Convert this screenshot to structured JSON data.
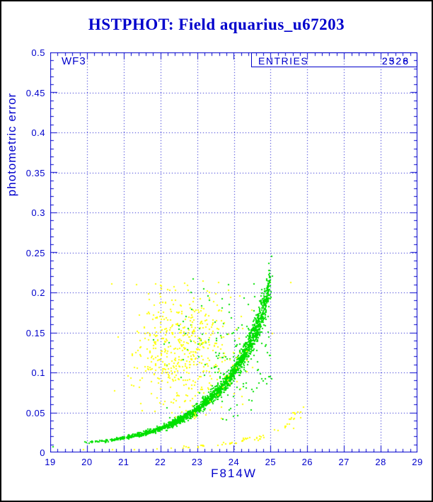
{
  "title": "HSTPHOT: Field aquarius_u67203",
  "chip_label": "WF3",
  "entries": {
    "label": "ENTRIES",
    "values": [
      "2528",
      "2326"
    ]
  },
  "colors": {
    "axis_blue": "#0000cc",
    "title_blue": "#0000cc",
    "green_points": "#00e000",
    "yellow_points": "#ffff00",
    "background": "#ffffff"
  },
  "chart_data": {
    "type": "scatter",
    "title": "HSTPHOT: Field aquarius_u67203",
    "xlabel": "F814W",
    "ylabel": "photometric error",
    "xlim": [
      19,
      29
    ],
    "ylim": [
      0,
      0.5
    ],
    "x_major_tick": 1,
    "x_minor_tick": 0.2,
    "y_major_tick": 0.05,
    "y_minor_tick": 0.01,
    "grid": "dotted blue lines at major ticks, ticks inward on all four sides",
    "x_ticks": [
      {
        "v": 19,
        "label": "19"
      },
      {
        "v": 20,
        "label": "20"
      },
      {
        "v": 21,
        "label": "21"
      },
      {
        "v": 22,
        "label": "22"
      },
      {
        "v": 23,
        "label": "23"
      },
      {
        "v": 24,
        "label": "24"
      },
      {
        "v": 25,
        "label": "25"
      },
      {
        "v": 26,
        "label": "26"
      },
      {
        "v": 27,
        "label": "27"
      },
      {
        "v": 28,
        "label": "28"
      },
      {
        "v": 29,
        "label": "29"
      }
    ],
    "y_ticks": [
      {
        "v": 0,
        "label": "0"
      },
      {
        "v": 0.05,
        "label": "0.05"
      },
      {
        "v": 0.1,
        "label": "0.1"
      },
      {
        "v": 0.15,
        "label": "0.15"
      },
      {
        "v": 0.2,
        "label": "0.2"
      },
      {
        "v": 0.25,
        "label": "0.25"
      },
      {
        "v": 0.3,
        "label": "0.3"
      },
      {
        "v": 0.35,
        "label": "0.35"
      },
      {
        "v": 0.4,
        "label": "0.4"
      },
      {
        "v": 0.45,
        "label": "0.45"
      },
      {
        "v": 0.5,
        "label": "0.5"
      }
    ],
    "marker_px": 2,
    "seed": 20251234,
    "series": [
      {
        "name": "green-error-ridge",
        "color": "#00e000",
        "type": "curve_band",
        "count": 1900,
        "x_bias_pow": 0.5,
        "x_jitter_sd": 0.035,
        "y_rel_sd": 0.055,
        "curve": [
          [
            19.9,
            0.012
          ],
          [
            20.5,
            0.0145
          ],
          [
            21.0,
            0.018
          ],
          [
            21.5,
            0.023
          ],
          [
            22.0,
            0.03
          ],
          [
            22.5,
            0.04
          ],
          [
            23.0,
            0.054
          ],
          [
            23.5,
            0.073
          ],
          [
            24.0,
            0.1
          ],
          [
            24.35,
            0.128
          ],
          [
            24.65,
            0.158
          ],
          [
            24.85,
            0.185
          ],
          [
            25.0,
            0.215
          ]
        ]
      },
      {
        "name": "green-scatter-outliers",
        "color": "#00e000",
        "type": "cloud",
        "count": 155,
        "x_mean": 23.8,
        "x_sd": 0.75,
        "y_mean": 0.125,
        "y_sd": 0.045,
        "x_clip": [
          21.0,
          25.05
        ],
        "y_clip": [
          0.04,
          0.218
        ]
      },
      {
        "name": "yellow-scatter-cloud",
        "color": "#ffff00",
        "type": "cloud",
        "count": 520,
        "x_mean": 22.65,
        "x_sd": 0.72,
        "y_mean": 0.128,
        "y_sd": 0.042,
        "x_clip": [
          20.4,
          24.6
        ],
        "y_clip": [
          0.042,
          0.217
        ]
      },
      {
        "name": "yellow-lower-arc",
        "color": "#ffff00",
        "type": "curve_band",
        "count": 62,
        "x_bias_pow": 0.8,
        "x_jitter_sd": 0.06,
        "y_rel_sd": 0.1,
        "curve": [
          [
            22.6,
            0.006
          ],
          [
            23.3,
            0.0085
          ],
          [
            23.9,
            0.0115
          ],
          [
            24.4,
            0.0155
          ],
          [
            24.8,
            0.02
          ],
          [
            25.1,
            0.026
          ],
          [
            25.45,
            0.036
          ],
          [
            25.8,
            0.052
          ]
        ]
      },
      {
        "name": "yellow-strays",
        "color": "#ffff00",
        "type": "points",
        "points": [
          [
            19.9,
            0.0035
          ],
          [
            20.7,
            0.0035
          ],
          [
            21.3,
            0.0035
          ],
          [
            21.9,
            0.004
          ],
          [
            22.3,
            0.005
          ],
          [
            25.55,
            0.212
          ],
          [
            25.05,
            0.149
          ],
          [
            25.9,
            0.057
          ]
        ]
      },
      {
        "name": "green-strays",
        "color": "#00e000",
        "type": "points",
        "points": [
          [
            19.07,
            0.007
          ],
          [
            22.9,
            0.217
          ]
        ]
      }
    ]
  }
}
